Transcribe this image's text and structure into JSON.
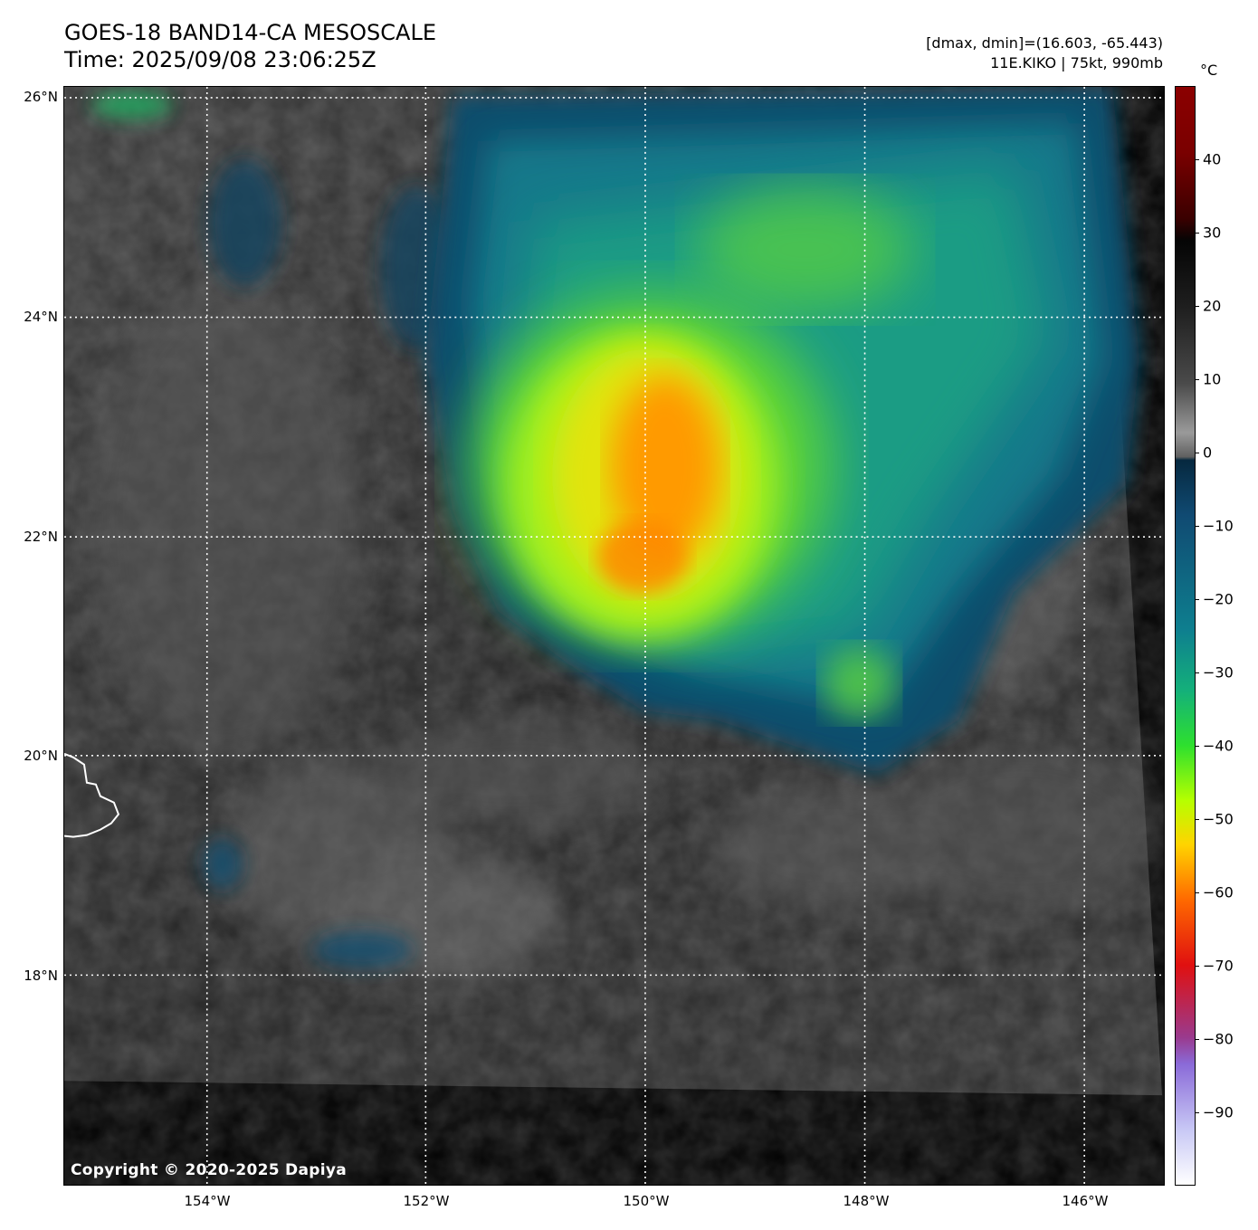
{
  "header": {
    "title_line1": "GOES-18 BAND14-CA MESOSCALE",
    "title_line2": "Time: 2025/09/08 23:06:25Z",
    "info_line1": "[dmax, dmin]=(16.603, -65.443)",
    "info_line2": "11E.KIKO | 75kt, 990mb"
  },
  "map": {
    "copyright": "Copyright © 2020-2025 Dapiya",
    "lat_labels": [
      "26°N",
      "24°N",
      "22°N",
      "20°N",
      "18°N"
    ],
    "lon_labels": [
      "154°W",
      "152°W",
      "150°W",
      "148°W",
      "146°W"
    ],
    "storm_label": "11E.KIKO",
    "colors": {
      "background": "#000000",
      "clear_sky": "#2a2a2a",
      "cold_top_core": "#ff7a00",
      "cloud_ring": "#0f5a78",
      "coastline": "#ffffff",
      "gridline": "#ffffff"
    }
  },
  "colorbar": {
    "unit": "°C",
    "ticks": [
      "40",
      "30",
      "20",
      "10",
      "0",
      "−10",
      "−20",
      "−30",
      "−40",
      "−50",
      "−60",
      "−70",
      "−80",
      "−90"
    ],
    "tick_values": [
      40,
      30,
      20,
      10,
      0,
      -10,
      -20,
      -30,
      -40,
      -50,
      -60,
      -70,
      -80,
      -90
    ],
    "range": [
      -100,
      50
    ]
  }
}
